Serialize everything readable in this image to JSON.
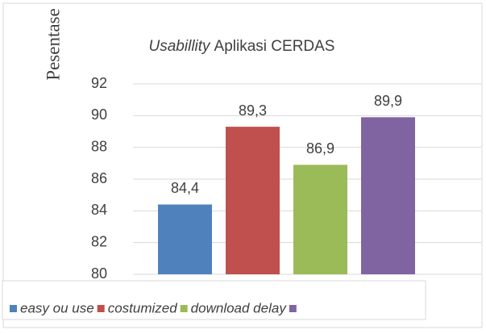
{
  "chart_data": {
    "type": "bar",
    "title": [
      "Usabillity",
      "Aplikasi CERDAS"
    ],
    "y_label": "Pesentase",
    "series": [
      {
        "name": "easy ou use",
        "color": "#4f81bd",
        "values": [
          84.4
        ],
        "value_labels": [
          "84,4"
        ]
      },
      {
        "name": "costumized",
        "color": "#c0504d",
        "values": [
          89.3
        ],
        "value_labels": [
          "89,3"
        ]
      },
      {
        "name": "download delay",
        "color": "#9bbb59",
        "values": [
          86.9
        ],
        "value_labels": [
          "86,9"
        ]
      },
      {
        "color": "#8064a2",
        "values": [
          89.9
        ],
        "value_labels": [
          "89,9"
        ]
      }
    ],
    "ylim": [
      80,
      92
    ],
    "yticks": [
      80,
      82,
      84,
      86,
      88,
      90,
      92
    ],
    "grid": true,
    "legend": "bottom"
  }
}
